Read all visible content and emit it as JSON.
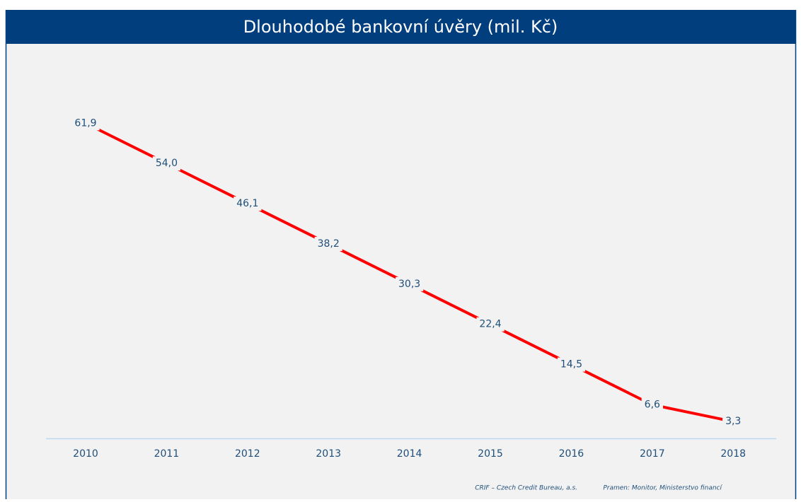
{
  "chart_data": {
    "type": "line",
    "title": "Dlouhodobé bankovní úvěry (mil. Kč)",
    "categories": [
      "2010",
      "2011",
      "2012",
      "2013",
      "2014",
      "2015",
      "2016",
      "2017",
      "2018"
    ],
    "series": [
      {
        "name": "Dlouhodobé bankovní úvěry",
        "color": "#ff0000",
        "values": [
          61.9,
          54.0,
          46.1,
          38.2,
          30.3,
          22.4,
          14.5,
          6.6,
          3.3
        ],
        "value_labels": [
          "61,9",
          "54,0",
          "46,1",
          "38,2",
          "30,3",
          "22,4",
          "14,5",
          "6,6",
          "3,3"
        ]
      }
    ],
    "ylim": [
      0,
      70
    ],
    "source": "CRIF – Czech Credit Bureau, a.s.",
    "note": "Pramen: Monitor, Ministerstvo financí"
  }
}
